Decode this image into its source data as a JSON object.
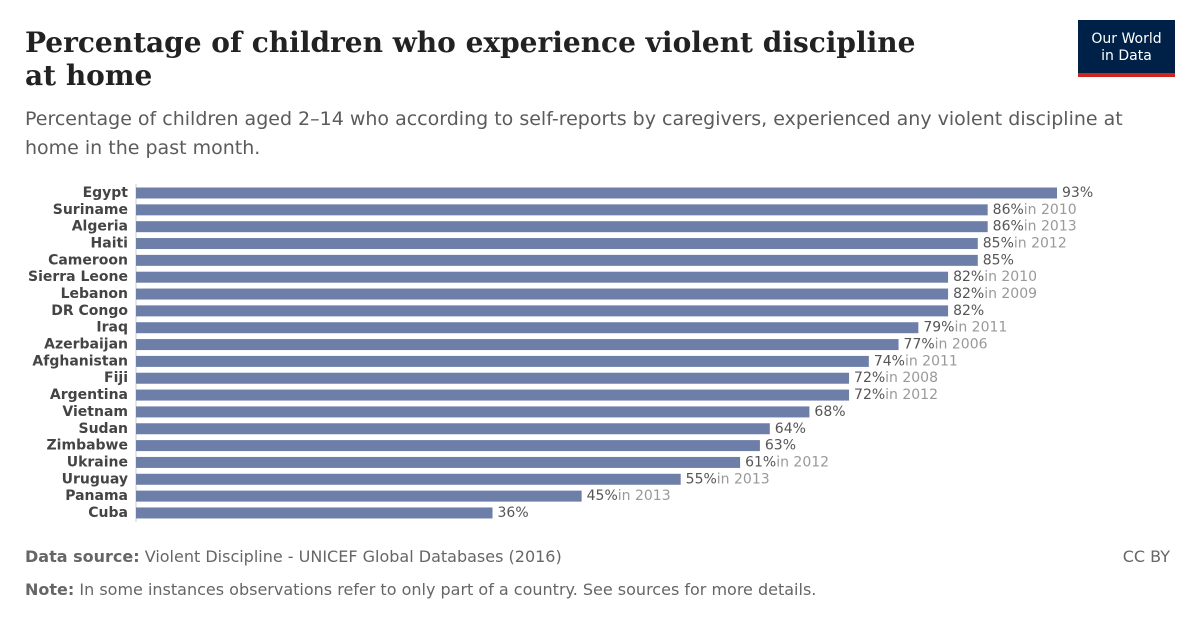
{
  "header": {
    "title": "Percentage of children who experience violent discipline at home",
    "subtitle": "Percentage of children aged 2–14 who according to self-reports by caregivers, experienced any violent discipline at home in the past month.",
    "logo": [
      "Our World",
      "in Data"
    ]
  },
  "chart_data": {
    "type": "bar",
    "orientation": "horizontal",
    "color": "#6d7fa8",
    "categories": [
      "Egypt",
      "Suriname",
      "Algeria",
      "Haiti",
      "Cameroon",
      "Sierra Leone",
      "Lebanon",
      "DR Congo",
      "Iraq",
      "Azerbaijan",
      "Afghanistan",
      "Fiji",
      "Argentina",
      "Vietnam",
      "Sudan",
      "Zimbabwe",
      "Ukraine",
      "Uruguay",
      "Panama",
      "Cuba"
    ],
    "values": [
      93,
      86,
      86,
      85,
      85,
      82,
      82,
      82,
      79,
      77,
      74,
      72,
      72,
      68,
      64,
      63,
      61,
      55,
      45,
      36
    ],
    "value_labels": [
      "93%",
      "86%",
      "86%",
      "85%",
      "85%",
      "82%",
      "82%",
      "82%",
      "79%",
      "77%",
      "74%",
      "72%",
      "72%",
      "68%",
      "64%",
      "63%",
      "61%",
      "55%",
      "45%",
      "36%"
    ],
    "year_notes": [
      null,
      "in 2010",
      "in 2013",
      "in 2012",
      null,
      "in 2010",
      "in 2009",
      null,
      "in 2011",
      "in 2006",
      "in 2011",
      "in 2008",
      "in 2012",
      null,
      null,
      null,
      "in 2012",
      "in 2013",
      "in 2013",
      null
    ]
  },
  "footer": {
    "source_label": "Data source:",
    "source": "Violent Discipline - UNICEF Global Databases (2016)",
    "license": "CC BY",
    "note_label": "Note:",
    "note": "In some instances observations refer to only part of a country. See sources for more details."
  }
}
